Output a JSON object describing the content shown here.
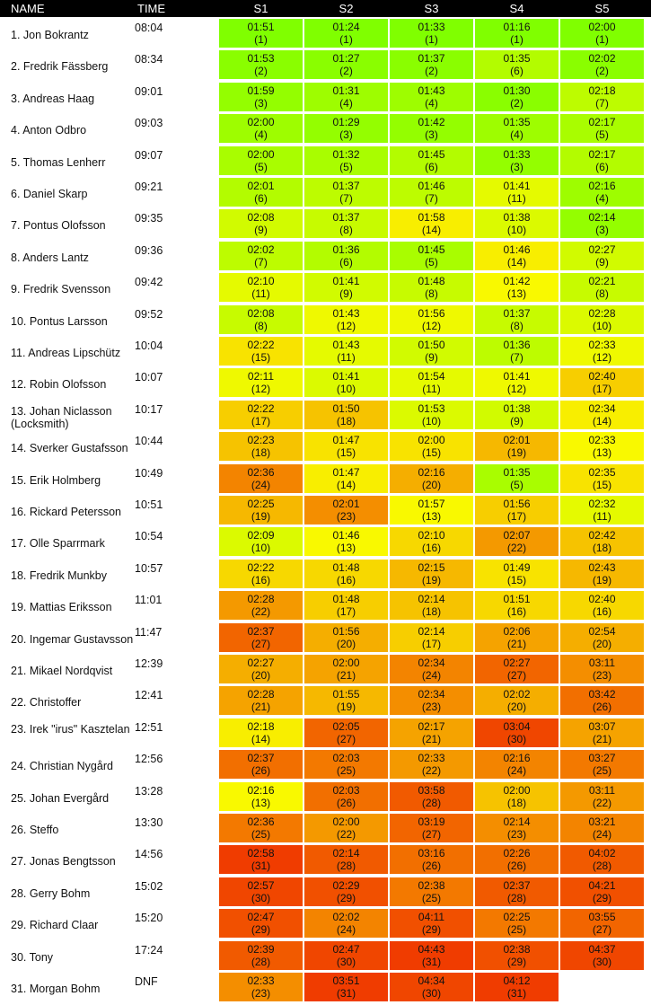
{
  "header": {
    "name": "NAME",
    "time": "TIME",
    "stages": [
      "S1",
      "S2",
      "S3",
      "S4",
      "S5"
    ]
  },
  "rows": [
    {
      "name": "1. Jon Bokrantz",
      "time": "08:04",
      "cells": [
        [
          "01:51",
          "(1)"
        ],
        [
          "01:24",
          "(1)"
        ],
        [
          "01:33",
          "(1)"
        ],
        [
          "01:16",
          "(1)"
        ],
        [
          "02:00",
          "(1)"
        ]
      ]
    },
    {
      "name": "2. Fredrik Fässberg",
      "time": "08:34",
      "cells": [
        [
          "01:53",
          "(2)"
        ],
        [
          "01:27",
          "(2)"
        ],
        [
          "01:37",
          "(2)"
        ],
        [
          "01:35",
          "(6)"
        ],
        [
          "02:02",
          "(2)"
        ]
      ]
    },
    {
      "name": "3. Andreas Haag",
      "time": "09:01",
      "cells": [
        [
          "01:59",
          "(3)"
        ],
        [
          "01:31",
          "(4)"
        ],
        [
          "01:43",
          "(4)"
        ],
        [
          "01:30",
          "(2)"
        ],
        [
          "02:18",
          "(7)"
        ]
      ]
    },
    {
      "name": "4. Anton Odbro",
      "time": "09:03",
      "cells": [
        [
          "02:00",
          "(4)"
        ],
        [
          "01:29",
          "(3)"
        ],
        [
          "01:42",
          "(3)"
        ],
        [
          "01:35",
          "(4)"
        ],
        [
          "02:17",
          "(5)"
        ]
      ]
    },
    {
      "name": "5. Thomas Lenherr",
      "time": "09:07",
      "cells": [
        [
          "02:00",
          "(5)"
        ],
        [
          "01:32",
          "(5)"
        ],
        [
          "01:45",
          "(6)"
        ],
        [
          "01:33",
          "(3)"
        ],
        [
          "02:17",
          "(6)"
        ]
      ]
    },
    {
      "name": "6. Daniel Skarp",
      "time": "09:21",
      "cells": [
        [
          "02:01",
          "(6)"
        ],
        [
          "01:37",
          "(7)"
        ],
        [
          "01:46",
          "(7)"
        ],
        [
          "01:41",
          "(11)"
        ],
        [
          "02:16",
          "(4)"
        ]
      ]
    },
    {
      "name": "7. Pontus Olofsson",
      "time": "09:35",
      "cells": [
        [
          "02:08",
          "(9)"
        ],
        [
          "01:37",
          "(8)"
        ],
        [
          "01:58",
          "(14)"
        ],
        [
          "01:38",
          "(10)"
        ],
        [
          "02:14",
          "(3)"
        ]
      ]
    },
    {
      "name": "8. Anders Lantz",
      "time": "09:36",
      "cells": [
        [
          "02:02",
          "(7)"
        ],
        [
          "01:36",
          "(6)"
        ],
        [
          "01:45",
          "(5)"
        ],
        [
          "01:46",
          "(14)"
        ],
        [
          "02:27",
          "(9)"
        ]
      ]
    },
    {
      "name": "9. Fredrik Svensson",
      "time": "09:42",
      "cells": [
        [
          "02:10",
          "(11)"
        ],
        [
          "01:41",
          "(9)"
        ],
        [
          "01:48",
          "(8)"
        ],
        [
          "01:42",
          "(13)"
        ],
        [
          "02:21",
          "(8)"
        ]
      ]
    },
    {
      "name": "10. Pontus Larsson",
      "time": "09:52",
      "cells": [
        [
          "02:08",
          "(8)"
        ],
        [
          "01:43",
          "(12)"
        ],
        [
          "01:56",
          "(12)"
        ],
        [
          "01:37",
          "(8)"
        ],
        [
          "02:28",
          "(10)"
        ]
      ]
    },
    {
      "name": "11. Andreas Lipschütz",
      "time": "10:04",
      "cells": [
        [
          "02:22",
          "(15)"
        ],
        [
          "01:43",
          "(11)"
        ],
        [
          "01:50",
          "(9)"
        ],
        [
          "01:36",
          "(7)"
        ],
        [
          "02:33",
          "(12)"
        ]
      ]
    },
    {
      "name": "12. Robin Olofsson",
      "time": "10:07",
      "cells": [
        [
          "02:11",
          "(12)"
        ],
        [
          "01:41",
          "(10)"
        ],
        [
          "01:54",
          "(11)"
        ],
        [
          "01:41",
          "(12)"
        ],
        [
          "02:40",
          "(17)"
        ]
      ]
    },
    {
      "name": "13. Johan Niclasson (Locksmith)",
      "time": "10:17",
      "cells": [
        [
          "02:22",
          "(17)"
        ],
        [
          "01:50",
          "(18)"
        ],
        [
          "01:53",
          "(10)"
        ],
        [
          "01:38",
          "(9)"
        ],
        [
          "02:34",
          "(14)"
        ]
      ]
    },
    {
      "name": "14. Sverker Gustafsson",
      "time": "10:44",
      "cells": [
        [
          "02:23",
          "(18)"
        ],
        [
          "01:47",
          "(15)"
        ],
        [
          "02:00",
          "(15)"
        ],
        [
          "02:01",
          "(19)"
        ],
        [
          "02:33",
          "(13)"
        ]
      ]
    },
    {
      "name": "15. Erik Holmberg",
      "time": "10:49",
      "cells": [
        [
          "02:36",
          "(24)"
        ],
        [
          "01:47",
          "(14)"
        ],
        [
          "02:16",
          "(20)"
        ],
        [
          "01:35",
          "(5)"
        ],
        [
          "02:35",
          "(15)"
        ]
      ]
    },
    {
      "name": "16. Rickard Petersson",
      "time": "10:51",
      "cells": [
        [
          "02:25",
          "(19)"
        ],
        [
          "02:01",
          "(23)"
        ],
        [
          "01:57",
          "(13)"
        ],
        [
          "01:56",
          "(17)"
        ],
        [
          "02:32",
          "(11)"
        ]
      ]
    },
    {
      "name": "17. Olle Sparrmark",
      "time": "10:54",
      "cells": [
        [
          "02:09",
          "(10)"
        ],
        [
          "01:46",
          "(13)"
        ],
        [
          "02:10",
          "(16)"
        ],
        [
          "02:07",
          "(22)"
        ],
        [
          "02:42",
          "(18)"
        ]
      ]
    },
    {
      "name": "18. Fredrik Munkby",
      "time": "10:57",
      "cells": [
        [
          "02:22",
          "(16)"
        ],
        [
          "01:48",
          "(16)"
        ],
        [
          "02:15",
          "(19)"
        ],
        [
          "01:49",
          "(15)"
        ],
        [
          "02:43",
          "(19)"
        ]
      ]
    },
    {
      "name": "19. Mattias Eriksson",
      "time": "11:01",
      "cells": [
        [
          "02:28",
          "(22)"
        ],
        [
          "01:48",
          "(17)"
        ],
        [
          "02:14",
          "(18)"
        ],
        [
          "01:51",
          "(16)"
        ],
        [
          "02:40",
          "(16)"
        ]
      ]
    },
    {
      "name": "20. Ingemar Gustavsson",
      "time": "11:47",
      "cells": [
        [
          "02:37",
          "(27)"
        ],
        [
          "01:56",
          "(20)"
        ],
        [
          "02:14",
          "(17)"
        ],
        [
          "02:06",
          "(21)"
        ],
        [
          "02:54",
          "(20)"
        ]
      ]
    },
    {
      "name": "21. Mikael Nordqvist",
      "time": "12:39",
      "cells": [
        [
          "02:27",
          "(20)"
        ],
        [
          "02:00",
          "(21)"
        ],
        [
          "02:34",
          "(24)"
        ],
        [
          "02:27",
          "(27)"
        ],
        [
          "03:11",
          "(23)"
        ]
      ]
    },
    {
      "name": "22. Christoffer",
      "time": "12:41",
      "cells": [
        [
          "02:28",
          "(21)"
        ],
        [
          "01:55",
          "(19)"
        ],
        [
          "02:34",
          "(23)"
        ],
        [
          "02:02",
          "(20)"
        ],
        [
          "03:42",
          "(26)"
        ]
      ]
    },
    {
      "name": "23. Irek \"irus\" Kasztelan",
      "time": "12:51",
      "cells": [
        [
          "02:18",
          "(14)"
        ],
        [
          "02:05",
          "(27)"
        ],
        [
          "02:17",
          "(21)"
        ],
        [
          "03:04",
          "(30)"
        ],
        [
          "03:07",
          "(21)"
        ]
      ]
    },
    {
      "name": "24. Christian Nygård",
      "time": "12:56",
      "cells": [
        [
          "02:37",
          "(26)"
        ],
        [
          "02:03",
          "(25)"
        ],
        [
          "02:33",
          "(22)"
        ],
        [
          "02:16",
          "(24)"
        ],
        [
          "03:27",
          "(25)"
        ]
      ]
    },
    {
      "name": "25. Johan Evergård",
      "time": "13:28",
      "cells": [
        [
          "02:16",
          "(13)"
        ],
        [
          "02:03",
          "(26)"
        ],
        [
          "03:58",
          "(28)"
        ],
        [
          "02:00",
          "(18)"
        ],
        [
          "03:11",
          "(22)"
        ]
      ]
    },
    {
      "name": "26. Steffo",
      "time": "13:30",
      "cells": [
        [
          "02:36",
          "(25)"
        ],
        [
          "02:00",
          "(22)"
        ],
        [
          "03:19",
          "(27)"
        ],
        [
          "02:14",
          "(23)"
        ],
        [
          "03:21",
          "(24)"
        ]
      ]
    },
    {
      "name": "27. Jonas Bengtsson",
      "time": "14:56",
      "cells": [
        [
          "02:58",
          "(31)"
        ],
        [
          "02:14",
          "(28)"
        ],
        [
          "03:16",
          "(26)"
        ],
        [
          "02:26",
          "(26)"
        ],
        [
          "04:02",
          "(28)"
        ]
      ]
    },
    {
      "name": "28. Gerry Bohm",
      "time": "15:02",
      "cells": [
        [
          "02:57",
          "(30)"
        ],
        [
          "02:29",
          "(29)"
        ],
        [
          "02:38",
          "(25)"
        ],
        [
          "02:37",
          "(28)"
        ],
        [
          "04:21",
          "(29)"
        ]
      ]
    },
    {
      "name": "29. Richard Claar",
      "time": "15:20",
      "cells": [
        [
          "02:47",
          "(29)"
        ],
        [
          "02:02",
          "(24)"
        ],
        [
          "04:11",
          "(29)"
        ],
        [
          "02:25",
          "(25)"
        ],
        [
          "03:55",
          "(27)"
        ]
      ]
    },
    {
      "name": "30. Tony",
      "time": "17:24",
      "cells": [
        [
          "02:39",
          "(28)"
        ],
        [
          "02:47",
          "(30)"
        ],
        [
          "04:43",
          "(31)"
        ],
        [
          "02:38",
          "(29)"
        ],
        [
          "04:37",
          "(30)"
        ]
      ]
    },
    {
      "name": "31. Morgan Bohm",
      "time": "DNF",
      "cells": [
        [
          "02:33",
          "(23)"
        ],
        [
          "03:51",
          "(31)"
        ],
        [
          "04:34",
          "(30)"
        ],
        [
          "04:12",
          "(31)"
        ],
        null
      ]
    }
  ]
}
